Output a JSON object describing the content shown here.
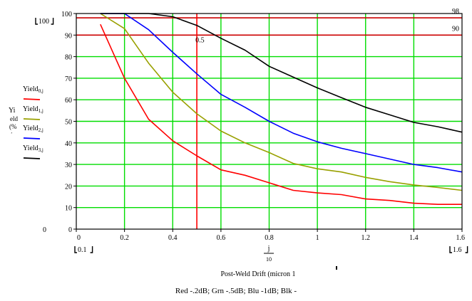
{
  "chart_data": {
    "type": "line",
    "xlim": [
      0,
      1.6
    ],
    "ylim": [
      0,
      100
    ],
    "x_ticks": [
      0,
      0.2,
      0.4,
      0.6,
      0.8,
      1,
      1.2,
      1.4,
      1.6
    ],
    "x_tick_labels": [
      "0",
      "0.2",
      "0.4",
      "0.6",
      "0.8",
      "1",
      "1.2",
      "1.4",
      "1.6"
    ],
    "y_ticks": [
      0,
      10,
      20,
      30,
      40,
      50,
      60,
      70,
      80,
      90,
      100
    ],
    "y_tick_labels": [
      "0",
      "10",
      "20",
      "30",
      "40",
      "50",
      "60",
      "70",
      "80",
      "90",
      "100"
    ],
    "grid": true,
    "x": [
      0.1,
      0.2,
      0.3,
      0.4,
      0.5,
      0.6,
      0.7,
      0.8,
      0.9,
      1.0,
      1.1,
      1.2,
      1.3,
      1.4,
      1.5,
      1.6
    ],
    "series": [
      {
        "name": "Yield0,j",
        "color": "#ff0000",
        "values": [
          95,
          70,
          51,
          41,
          34,
          27.5,
          25,
          21.5,
          18,
          16.8,
          16,
          14,
          13.3,
          12,
          11.5,
          11.5
        ]
      },
      {
        "name": "Yield1,j",
        "color": "#99a000",
        "values": [
          100,
          93,
          77,
          63.5,
          53.5,
          45.5,
          40,
          35.5,
          30.5,
          28,
          26.5,
          24,
          22,
          20.5,
          19.3,
          18
        ]
      },
      {
        "name": "Yield2,j",
        "color": "#0000ff",
        "values": [
          100,
          100,
          92.5,
          82,
          72,
          62.5,
          56.5,
          50,
          44.5,
          40.5,
          37.5,
          35,
          32.5,
          30,
          28.5,
          26.5
        ]
      },
      {
        "name": "Yield3,j",
        "color": "#000000",
        "values": [
          100,
          100,
          100,
          98.5,
          94.5,
          88.5,
          83,
          75.5,
          70.5,
          65.5,
          61,
          56.5,
          53,
          49.5,
          47.5,
          45
        ]
      }
    ],
    "hlines": [
      {
        "y": 98,
        "label": "98",
        "color": "#cc0000"
      },
      {
        "y": 90,
        "label": "90",
        "color": "#cc0000"
      }
    ],
    "vlines": [
      {
        "x": 0.5,
        "label": "0.5",
        "color": "#ff0000"
      }
    ],
    "ylabel_fragments": [
      "Yi",
      "eld",
      "(%",
      "ʼ"
    ],
    "legend_labels": [
      "Yield0,j",
      "Yield1,j",
      "Yield2,j",
      "Yield3,j"
    ],
    "y_max_corner_label": "100",
    "y_min_corner_label": "0",
    "x_min_corner_label": "0.1",
    "x_max_corner_label": "1.6",
    "x_var_numerator": "j",
    "x_var_denominator": "10",
    "xlabel": "Post-Weld Drift (micron 1",
    "caption": "Red -.2dB; Grn -.5dB; Blu -1dB; Blk -"
  }
}
